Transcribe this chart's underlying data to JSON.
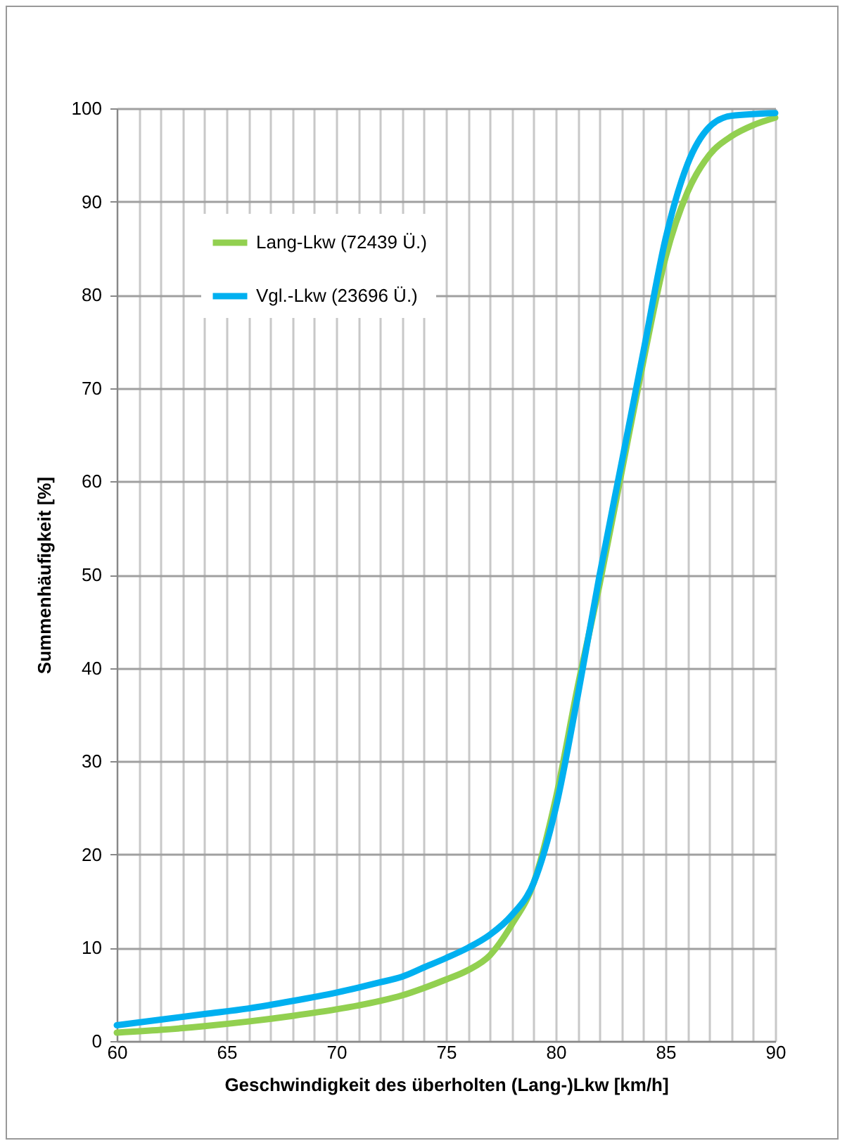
{
  "chart_data": {
    "type": "line",
    "xlabel": "Geschwindigkeit des überholten (Lang-)Lkw  [km/h]",
    "ylabel": "Summenhäufigkeit [%]",
    "xlim": [
      60,
      90
    ],
    "ylim": [
      0,
      100
    ],
    "xticks": [
      60,
      {
        "value": 61,
        "label": null
      },
      {
        "value": 62,
        "label": null
      },
      {
        "value": 63,
        "label": null
      },
      {
        "value": 64,
        "label": null
      },
      65,
      {
        "value": 66,
        "label": null
      },
      {
        "value": 67,
        "label": null
      },
      {
        "value": 68,
        "label": null
      },
      {
        "value": 69,
        "label": null
      },
      70,
      {
        "value": 71,
        "label": null
      },
      {
        "value": 72,
        "label": null
      },
      {
        "value": 73,
        "label": null
      },
      {
        "value": 74,
        "label": null
      },
      75,
      {
        "value": 76,
        "label": null
      },
      {
        "value": 77,
        "label": null
      },
      {
        "value": 78,
        "label": null
      },
      {
        "value": 79,
        "label": null
      },
      80,
      {
        "value": 81,
        "label": null
      },
      {
        "value": 82,
        "label": null
      },
      {
        "value": 83,
        "label": null
      },
      {
        "value": 84,
        "label": null
      },
      85,
      {
        "value": 86,
        "label": null
      },
      {
        "value": 87,
        "label": null
      },
      {
        "value": 88,
        "label": null
      },
      {
        "value": 89,
        "label": null
      },
      90
    ],
    "yticks": [
      0,
      10,
      20,
      30,
      40,
      50,
      60,
      70,
      80,
      90,
      100
    ],
    "grid": true,
    "legend": "top left",
    "marker": "none",
    "line_style": "solid",
    "series": [
      {
        "name": "Lang-Lkw (72439 Ü.)",
        "color": "#92d050",
        "x": [
          60,
          62,
          64,
          66,
          68,
          70,
          72,
          73,
          74,
          75,
          76,
          77,
          78,
          79,
          80,
          81,
          82,
          83,
          84,
          85,
          86,
          87,
          88,
          89,
          90
        ],
        "values": [
          0.9,
          1.2,
          1.6,
          2.1,
          2.7,
          3.4,
          4.3,
          4.9,
          5.7,
          6.6,
          7.6,
          9.2,
          12.5,
          17,
          26,
          38,
          49,
          61,
          73,
          84,
          91,
          95,
          97,
          98.2,
          99
        ]
      },
      {
        "name": "Vgl.-Lkw (23696 Ü.)",
        "color": "#00b0f0",
        "x": [
          60,
          62,
          64,
          66,
          68,
          70,
          72,
          73,
          74,
          75,
          76,
          77,
          78,
          79,
          80,
          81,
          82,
          83,
          84,
          85,
          86,
          87,
          88,
          90
        ],
        "values": [
          1.7,
          2.3,
          2.9,
          3.5,
          4.3,
          5.2,
          6.3,
          6.9,
          7.9,
          8.9,
          10,
          11.4,
          13.5,
          17,
          25,
          37,
          50,
          62,
          74,
          86,
          94,
          98,
          99.2,
          99.5
        ]
      }
    ]
  }
}
